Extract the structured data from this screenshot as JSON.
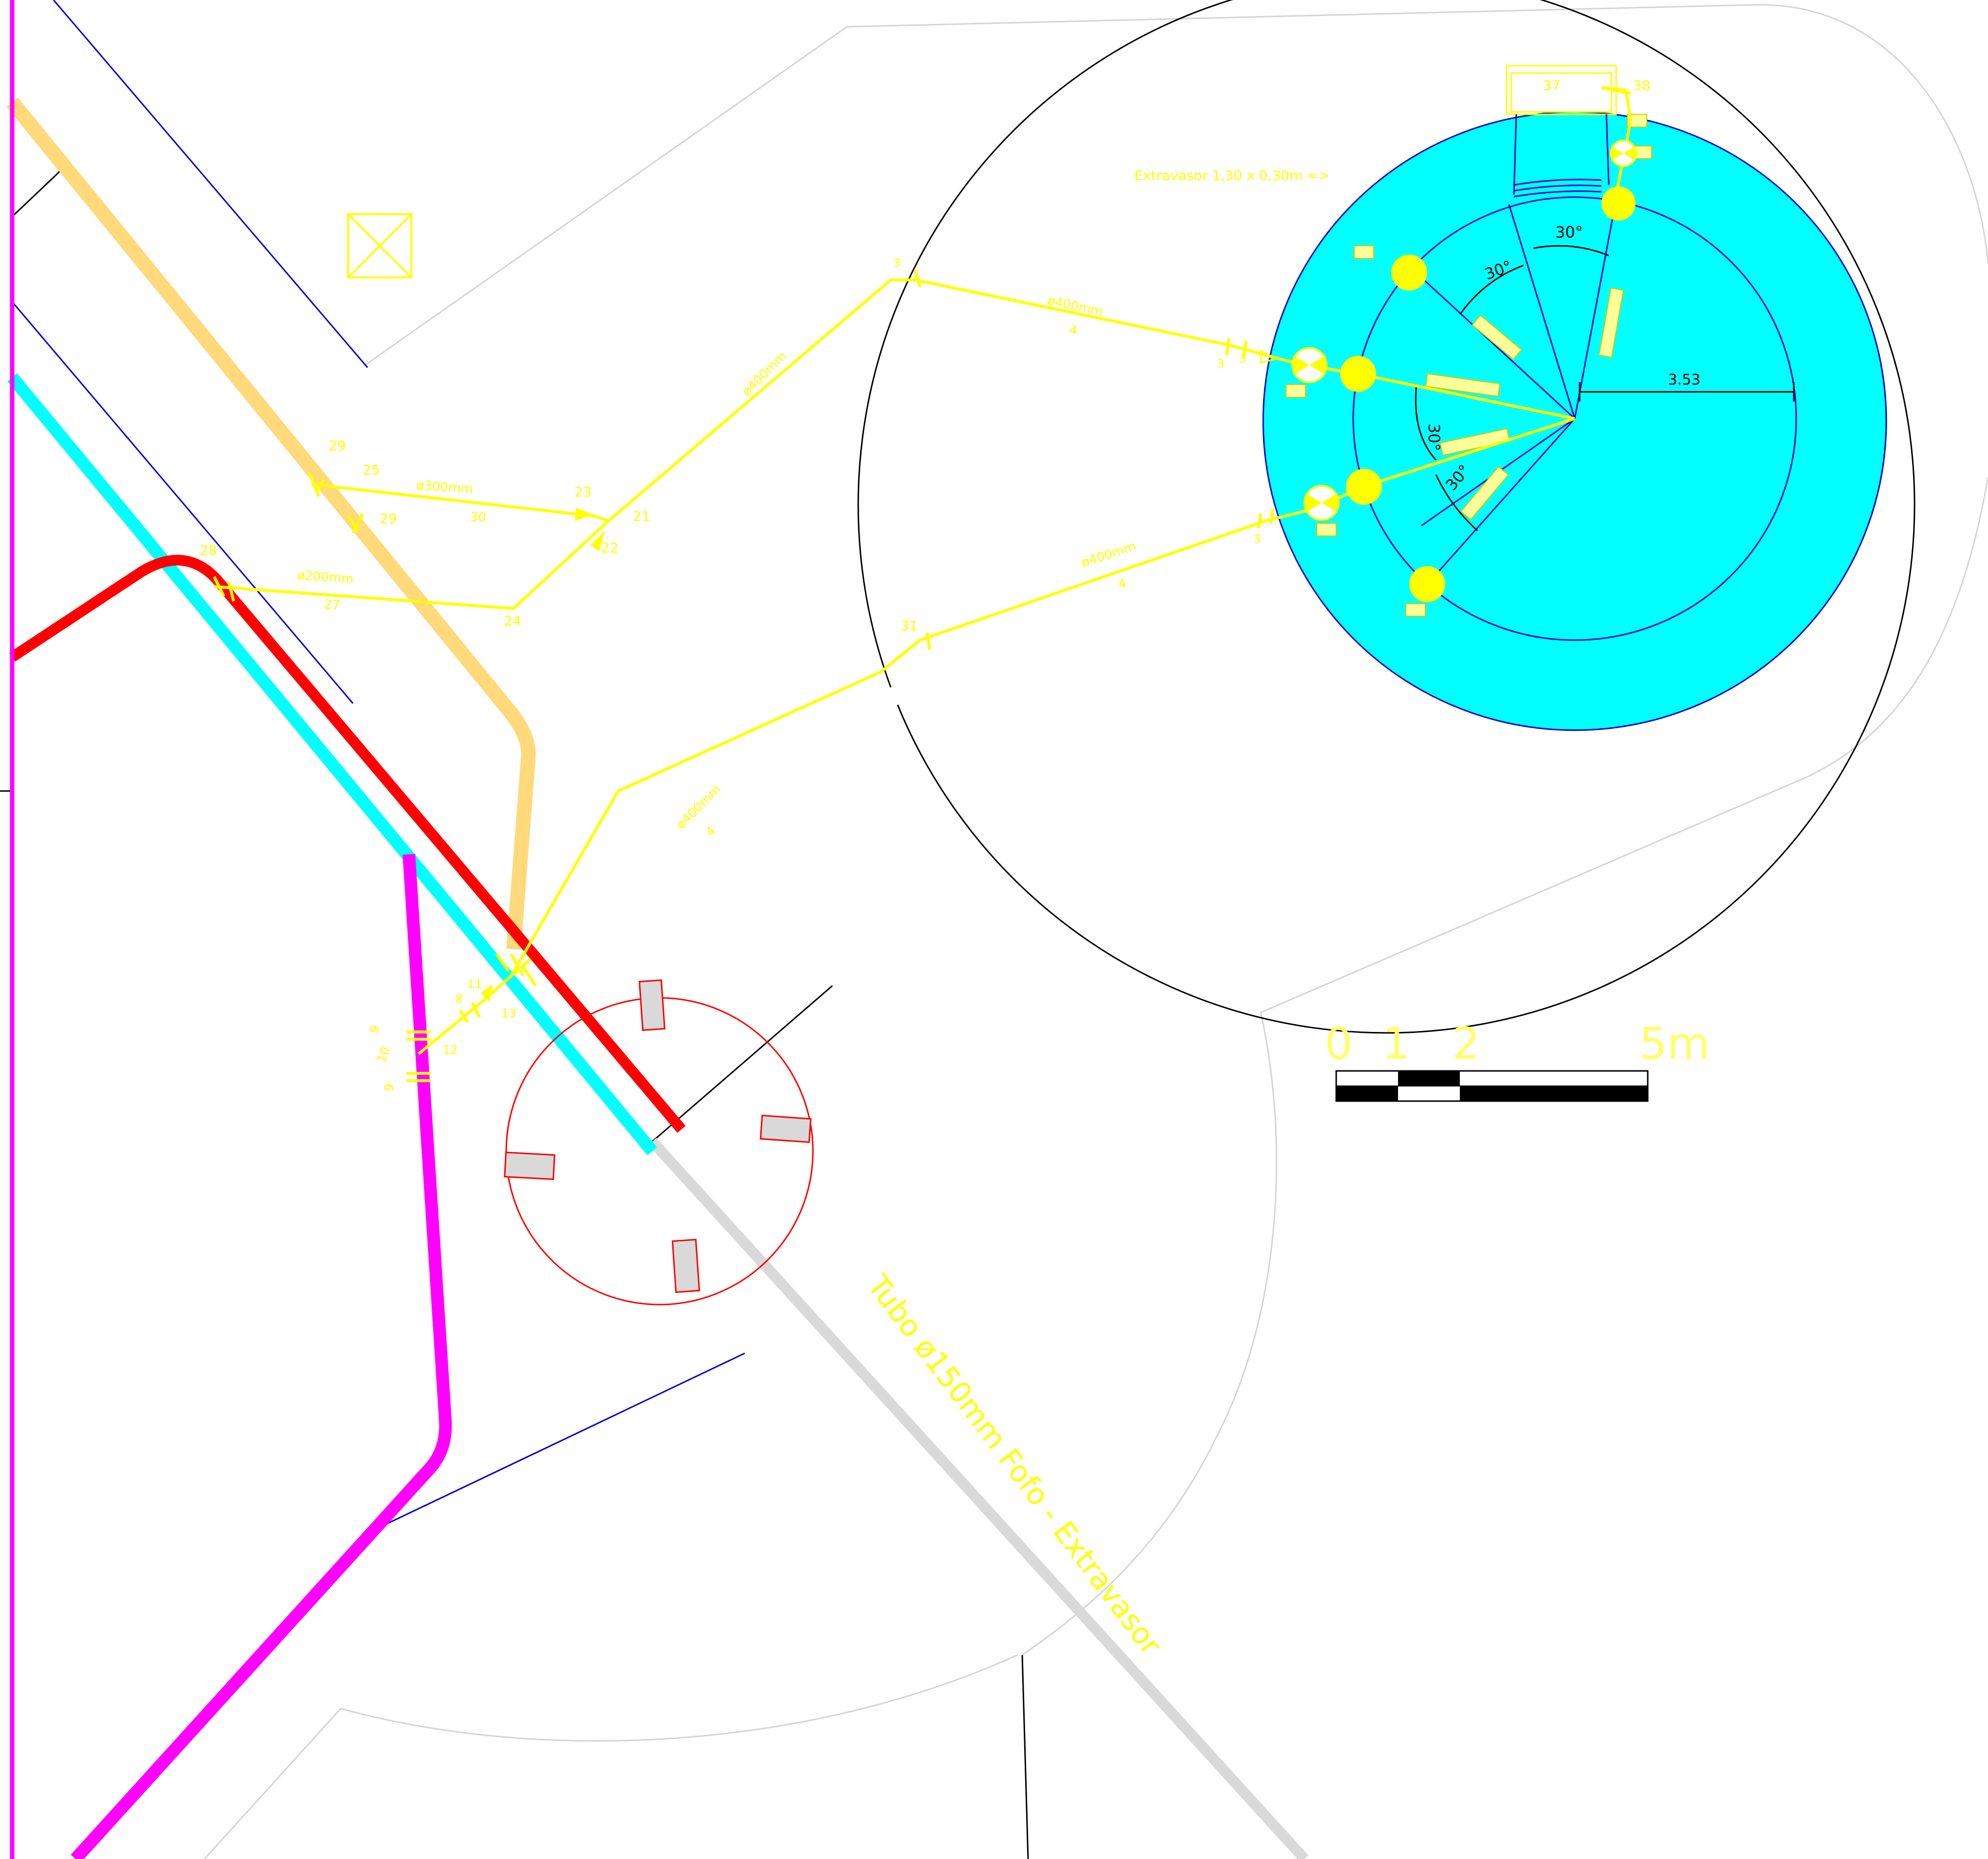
{
  "colors": {
    "background": "#ffffff",
    "pipe_yellow": "#ffff00",
    "tank_fill": "#00ffff",
    "tank_outline": "#0000cc",
    "red_line": "#ff0000",
    "magenta_line": "#ff00ff",
    "cyan_line": "#00ffff",
    "tan_line": "#ffd97a",
    "grey_pipe": "#d9d9d9",
    "boundary_grey": "#d4d4d4",
    "thin_blue": "#0000cc"
  },
  "annotations": {
    "extravasor_note": "Extravasor 1,30 x 0,30m =>",
    "tube_label": "Tubo ø150mm Fofo - Extravasor",
    "radius_value": "3.53"
  },
  "angles": [
    "30°",
    "30°",
    "30°",
    "30°"
  ],
  "pipe_labels": [
    {
      "name": "ø400mm",
      "num": "4"
    },
    {
      "name": "ø400mm",
      "num": "4"
    },
    {
      "name": "ø400mm",
      "num": "4"
    },
    {
      "name": "ø400mm",
      "num": ""
    },
    {
      "name": "ø300mm",
      "num": "30"
    },
    {
      "name": "ø200mm",
      "num": "27"
    }
  ],
  "node_numbers": [
    "3",
    "3",
    "3",
    "3",
    "23",
    "21",
    "22",
    "24",
    "25",
    "29",
    "29",
    "28",
    "31",
    "37",
    "38",
    "9",
    "10",
    "9",
    "8",
    "11",
    "12",
    "13"
  ],
  "scale_bar": {
    "labels": [
      "0",
      "1",
      "2",
      "5m"
    ]
  },
  "icons": [
    "valve-icon",
    "blind-flange-icon",
    "junction-box-icon"
  ]
}
